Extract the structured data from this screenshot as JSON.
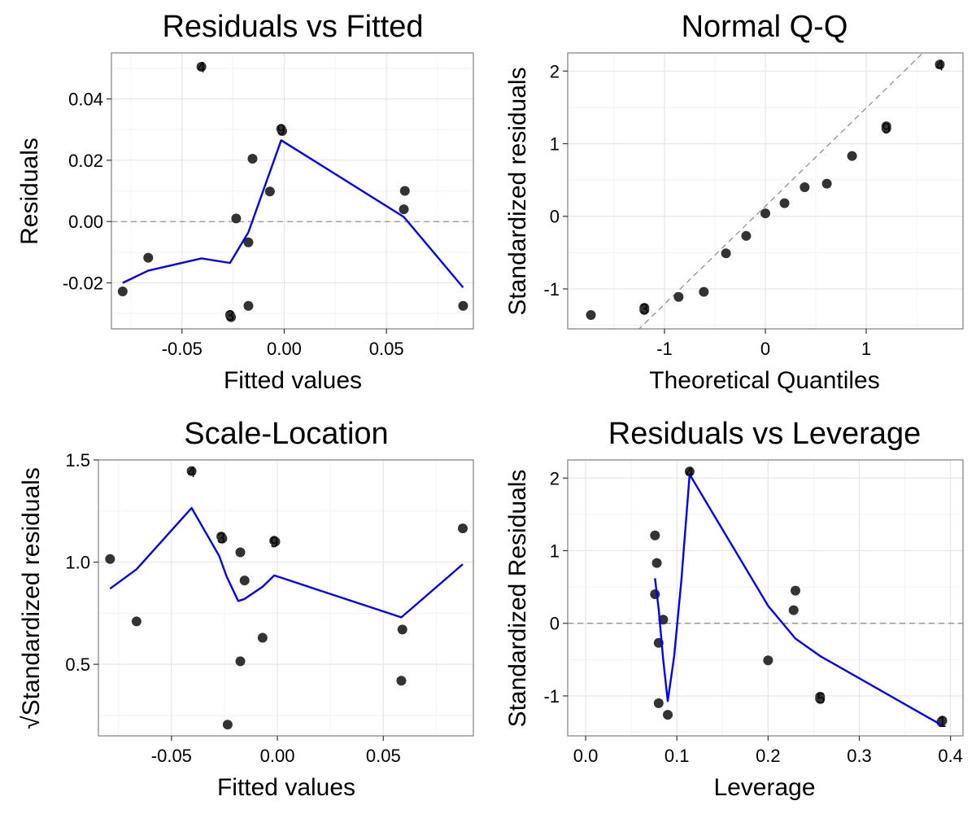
{
  "colors": {
    "point": "#333333",
    "smooth": "#0000ff",
    "refline": "#888888",
    "grid_major": "#e6e6e6",
    "grid_minor": "#f3f3f3",
    "frame": "#7f7f7f"
  },
  "chart_data": [
    {
      "id": "rvf",
      "type": "scatter",
      "title": "Residuals vs Fitted",
      "xlabel": "Fitted values",
      "ylabel": "Residuals",
      "xlim": [
        -0.0845,
        0.0925
      ],
      "ylim": [
        -0.035,
        0.055
      ],
      "xticks": [
        {
          "v": -0.05,
          "label": "-0.05"
        },
        {
          "v": 0.0,
          "label": "0.00"
        },
        {
          "v": 0.05,
          "label": "0.05"
        }
      ],
      "yticks": [
        {
          "v": -0.02,
          "label": "-0.02"
        },
        {
          "v": 0.0,
          "label": "0.00"
        },
        {
          "v": 0.02,
          "label": "0.02"
        },
        {
          "v": 0.04,
          "label": "0.04"
        }
      ],
      "hline": 0,
      "grid": true,
      "points": [
        {
          "x": -0.079,
          "y": -0.0228
        },
        {
          "x": -0.0665,
          "y": -0.0118
        },
        {
          "x": -0.0405,
          "y": 0.0505
        },
        {
          "x": -0.0265,
          "y": -0.0305
        },
        {
          "x": -0.026,
          "y": -0.0312
        },
        {
          "x": -0.0235,
          "y": 0.001
        },
        {
          "x": -0.0175,
          "y": -0.0068
        },
        {
          "x": -0.0175,
          "y": -0.0275
        },
        {
          "x": -0.0155,
          "y": 0.0205
        },
        {
          "x": -0.007,
          "y": 0.0098
        },
        {
          "x": -0.0015,
          "y": 0.0302
        },
        {
          "x": -0.001,
          "y": 0.0295
        },
        {
          "x": 0.0585,
          "y": 0.004
        },
        {
          "x": 0.059,
          "y": 0.01
        },
        {
          "x": 0.0875,
          "y": -0.0275
        }
      ],
      "point_labels": [
        {
          "x": -0.0405,
          "y": 0.0505,
          "text": "4"
        },
        {
          "x": -0.0265,
          "y": -0.0305,
          "text": "3"
        },
        {
          "x": -0.0015,
          "y": 0.0302,
          "text": "9"
        }
      ],
      "smooth": [
        [
          -0.079,
          -0.02
        ],
        [
          -0.0665,
          -0.016
        ],
        [
          -0.0405,
          -0.012
        ],
        [
          -0.0265,
          -0.0135
        ],
        [
          -0.0175,
          -0.0035
        ],
        [
          -0.0015,
          0.0265
        ],
        [
          0.0585,
          0.0015
        ],
        [
          0.0875,
          -0.0215
        ]
      ]
    },
    {
      "id": "qq",
      "type": "scatter",
      "title": "Normal Q-Q",
      "xlabel": "Theoretical Quantiles",
      "ylabel": "Standardized residuals",
      "xlim": [
        -1.96,
        1.96
      ],
      "ylim": [
        -1.55,
        2.25
      ],
      "xticks": [
        {
          "v": -1,
          "label": "-1"
        },
        {
          "v": 0,
          "label": "0"
        },
        {
          "v": 1,
          "label": "1"
        }
      ],
      "yticks": [
        {
          "v": -1,
          "label": "-1"
        },
        {
          "v": 0,
          "label": "0"
        },
        {
          "v": 1,
          "label": "1"
        },
        {
          "v": 2,
          "label": "2"
        }
      ],
      "grid": true,
      "refline": {
        "intercept": 0.14,
        "slope": 1.35
      },
      "points": [
        {
          "x": -1.73,
          "y": -1.36
        },
        {
          "x": -1.2,
          "y": -1.26
        },
        {
          "x": -1.2,
          "y": -1.29
        },
        {
          "x": -0.86,
          "y": -1.11
        },
        {
          "x": -0.61,
          "y": -1.04
        },
        {
          "x": -0.39,
          "y": -0.51
        },
        {
          "x": -0.19,
          "y": -0.27
        },
        {
          "x": 0.0,
          "y": 0.04
        },
        {
          "x": 0.19,
          "y": 0.18
        },
        {
          "x": 0.39,
          "y": 0.4
        },
        {
          "x": 0.61,
          "y": 0.45
        },
        {
          "x": 0.86,
          "y": 0.83
        },
        {
          "x": 1.2,
          "y": 1.21
        },
        {
          "x": 1.2,
          "y": 1.24
        },
        {
          "x": 1.73,
          "y": 2.09
        }
      ],
      "point_labels": [
        {
          "x": 1.73,
          "y": 2.09,
          "text": "4"
        },
        {
          "x": 1.2,
          "y": 1.22,
          "text": "9"
        },
        {
          "x": -1.2,
          "y": -1.27,
          "text": "3"
        }
      ]
    },
    {
      "id": "sl",
      "type": "scatter",
      "title": "Scale-Location",
      "xlabel": "Fitted values",
      "ylabel": "Standardized residuals",
      "ylabel_prefix": "√",
      "xlim": [
        -0.0845,
        0.0925
      ],
      "ylim": [
        0.15,
        1.5
      ],
      "xticks": [
        {
          "v": -0.05,
          "label": "-0.05"
        },
        {
          "v": 0.0,
          "label": "0.00"
        },
        {
          "v": 0.05,
          "label": "0.05"
        }
      ],
      "yticks": [
        {
          "v": 0.5,
          "label": "0.5"
        },
        {
          "v": 1.0,
          "label": "1.0"
        },
        {
          "v": 1.5,
          "label": "1.5"
        }
      ],
      "grid": true,
      "points": [
        {
          "x": -0.079,
          "y": 1.015
        },
        {
          "x": -0.0665,
          "y": 0.71
        },
        {
          "x": -0.0405,
          "y": 1.445
        },
        {
          "x": -0.0265,
          "y": 1.125
        },
        {
          "x": -0.026,
          "y": 1.115
        },
        {
          "x": -0.0235,
          "y": 0.205
        },
        {
          "x": -0.0175,
          "y": 1.048
        },
        {
          "x": -0.0175,
          "y": 0.515
        },
        {
          "x": -0.0155,
          "y": 0.91
        },
        {
          "x": -0.007,
          "y": 0.63
        },
        {
          "x": -0.0015,
          "y": 1.105
        },
        {
          "x": -0.001,
          "y": 1.1
        },
        {
          "x": 0.0585,
          "y": 0.42
        },
        {
          "x": 0.059,
          "y": 0.67
        },
        {
          "x": 0.0875,
          "y": 1.165
        }
      ],
      "point_labels": [
        {
          "x": -0.0405,
          "y": 1.445,
          "text": "4"
        },
        {
          "x": -0.0265,
          "y": 1.12,
          "text": "3"
        },
        {
          "x": -0.0015,
          "y": 1.1,
          "text": "9"
        }
      ],
      "smooth": [
        [
          -0.079,
          0.87
        ],
        [
          -0.0665,
          0.965
        ],
        [
          -0.0405,
          1.265
        ],
        [
          -0.0275,
          1.03
        ],
        [
          -0.024,
          0.93
        ],
        [
          -0.0185,
          0.81
        ],
        [
          -0.0155,
          0.82
        ],
        [
          -0.007,
          0.88
        ],
        [
          -0.0015,
          0.935
        ],
        [
          0.0585,
          0.73
        ],
        [
          0.0875,
          0.99
        ]
      ]
    },
    {
      "id": "rvl",
      "type": "scatter",
      "title": "Residuals vs Leverage",
      "xlabel": "Leverage",
      "ylabel": "Standardized Residuals",
      "xlim": [
        -0.0197,
        0.4137
      ],
      "ylim": [
        -1.55,
        2.25
      ],
      "xticks": [
        {
          "v": 0.0,
          "label": "0.0"
        },
        {
          "v": 0.1,
          "label": "0.1"
        },
        {
          "v": 0.2,
          "label": "0.2"
        },
        {
          "v": 0.3,
          "label": "0.3"
        },
        {
          "v": 0.4,
          "label": "0.4"
        }
      ],
      "yticks": [
        {
          "v": -1,
          "label": "-1"
        },
        {
          "v": 0,
          "label": "0"
        },
        {
          "v": 1,
          "label": "1"
        },
        {
          "v": 2,
          "label": "2"
        }
      ],
      "hline": 0,
      "grid": true,
      "points": [
        {
          "x": 0.076,
          "y": 1.21
        },
        {
          "x": 0.078,
          "y": 0.83
        },
        {
          "x": 0.076,
          "y": 0.4
        },
        {
          "x": 0.08,
          "y": -0.27
        },
        {
          "x": 0.08,
          "y": -1.1
        },
        {
          "x": 0.085,
          "y": 0.05
        },
        {
          "x": 0.09,
          "y": -1.26
        },
        {
          "x": 0.114,
          "y": 2.09
        },
        {
          "x": 0.2,
          "y": -0.51
        },
        {
          "x": 0.228,
          "y": 0.18
        },
        {
          "x": 0.23,
          "y": 0.45
        },
        {
          "x": 0.257,
          "y": -1.04
        },
        {
          "x": 0.257,
          "y": -1.01
        },
        {
          "x": 0.39,
          "y": -1.36
        },
        {
          "x": 0.391,
          "y": -1.34
        }
      ],
      "point_labels": [
        {
          "x": 0.114,
          "y": 2.09,
          "text": "4"
        },
        {
          "x": 0.258,
          "y": -1.03,
          "text": "5"
        },
        {
          "x": 0.391,
          "y": -1.35,
          "text": "1"
        }
      ],
      "smooth": [
        [
          0.076,
          0.62
        ],
        [
          0.08,
          0.2
        ],
        [
          0.085,
          -0.5
        ],
        [
          0.09,
          -1.07
        ],
        [
          0.097,
          -0.45
        ],
        [
          0.105,
          0.6
        ],
        [
          0.114,
          2.05
        ],
        [
          0.2,
          0.24
        ],
        [
          0.23,
          -0.21
        ],
        [
          0.257,
          -0.45
        ],
        [
          0.39,
          -1.4
        ]
      ]
    }
  ]
}
